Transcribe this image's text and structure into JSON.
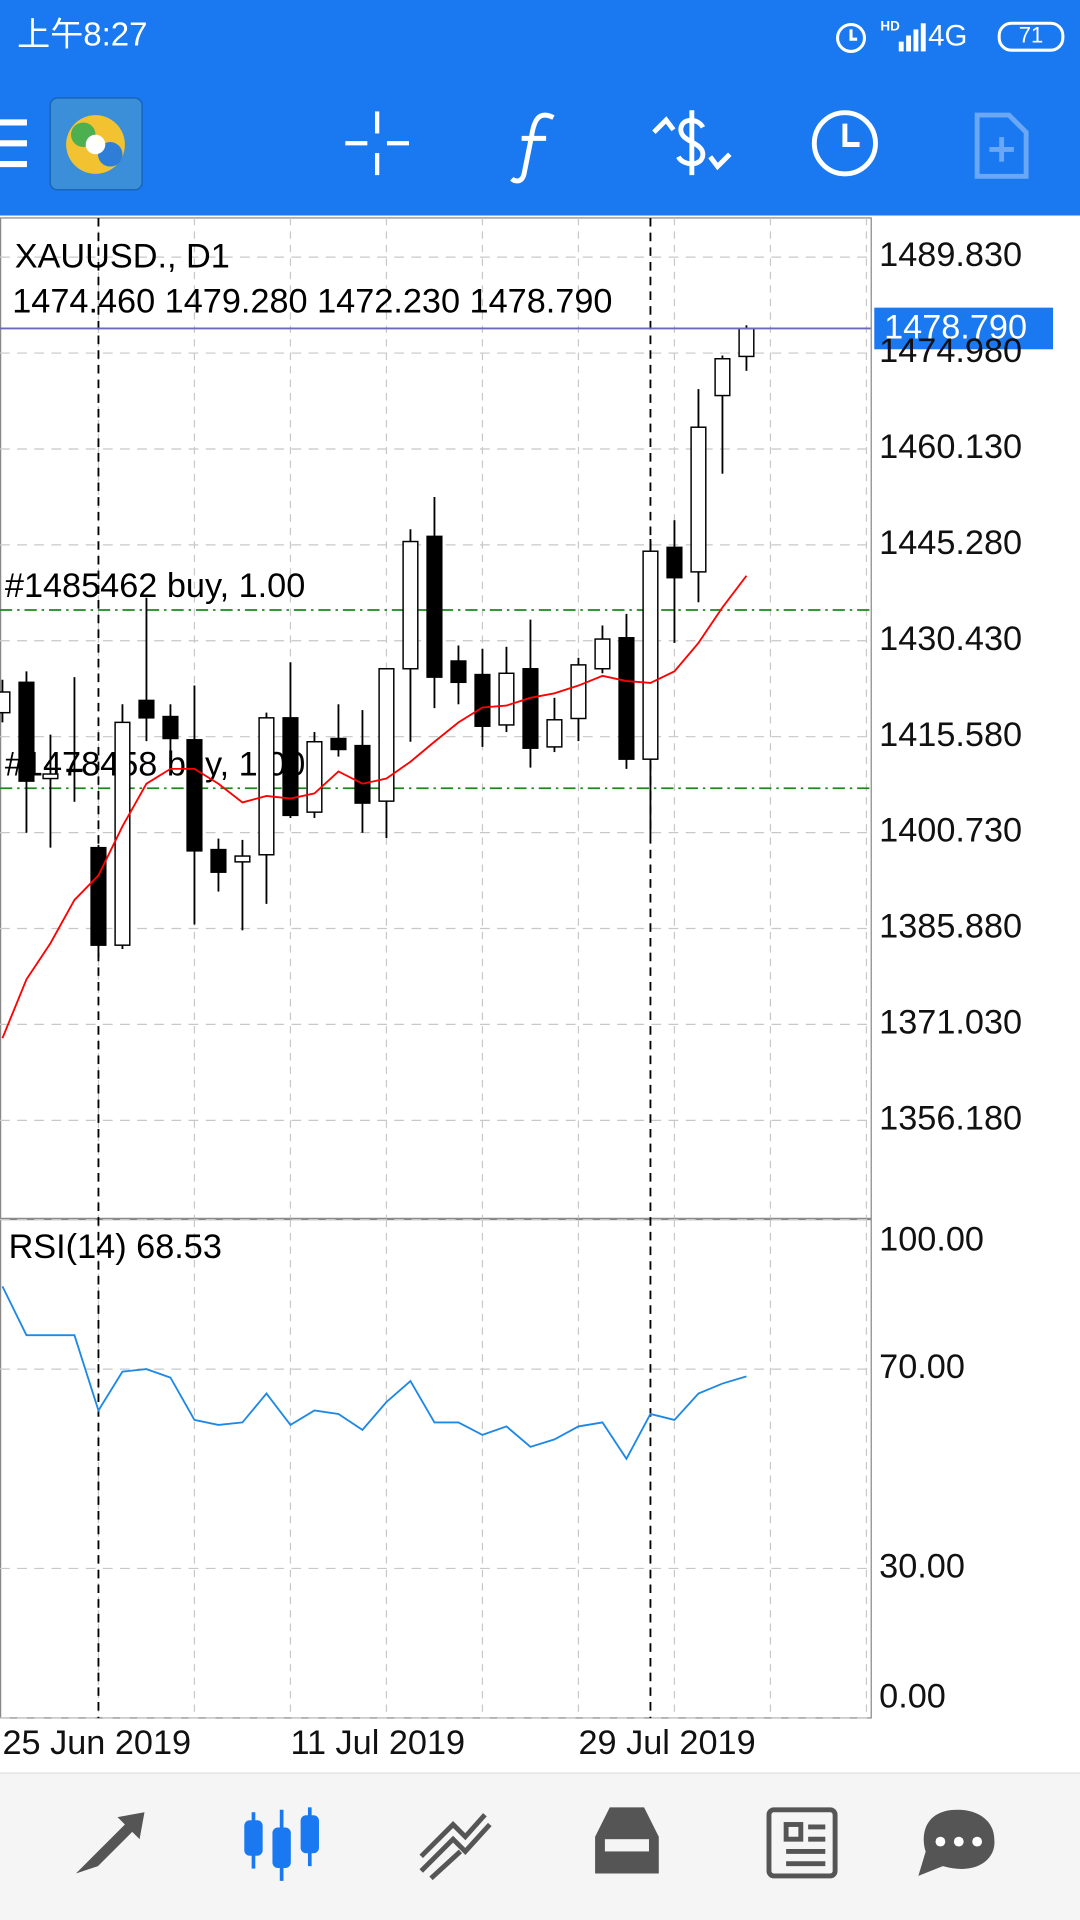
{
  "status_bar": {
    "time": "上午8:27",
    "hd": "HD",
    "network": "4G",
    "battery": "71"
  },
  "chart_data": [
    {
      "type": "candlestick",
      "title": "XAUUSD., D1",
      "subtitle": "1474.460 1479.280 1472.230 1478.790",
      "categories": [
        "25 Jun 2019",
        null,
        null,
        null,
        null,
        null,
        null,
        null,
        null,
        null,
        null,
        null,
        "11 Jul 2019",
        null,
        null,
        null,
        null,
        null,
        null,
        null,
        null,
        null,
        null,
        null,
        "29 Jul 2019",
        null,
        null,
        null,
        null,
        null,
        null,
        null
      ],
      "open": [
        1419.3,
        1424.0,
        1409.1,
        1410.5,
        1398.4,
        1383.3,
        1421.2,
        1418.7,
        1415.1,
        1398.1,
        1396.2,
        1397.3,
        1418.5,
        1403.9,
        1415.3,
        1414.2,
        1405.6,
        1426.1,
        1446.6,
        1427.3,
        1425.2,
        1417.4,
        1426.1,
        1414.0,
        1418.4,
        1426.1,
        1430.9,
        1412.1,
        1444.9,
        1441.1,
        1468.4,
        1474.46
      ],
      "high": [
        1424.4,
        1425.7,
        1415.9,
        1424.8,
        1398.8,
        1420.6,
        1437.1,
        1420.6,
        1423.5,
        1399.8,
        1399.6,
        1419.3,
        1427.1,
        1416.3,
        1420.6,
        1419.7,
        1426.1,
        1447.7,
        1452.7,
        1429.7,
        1429.2,
        1429.5,
        1433.7,
        1421.6,
        1427.8,
        1432.8,
        1434.6,
        1446.2,
        1449.1,
        1469.4,
        1474.6,
        1479.28
      ],
      "low": [
        1417.8,
        1400.7,
        1398.4,
        1405.5,
        1381.4,
        1382.7,
        1414.9,
        1410.2,
        1386.5,
        1391.6,
        1385.6,
        1389.7,
        1403.0,
        1403.0,
        1412.5,
        1400.7,
        1399.9,
        1414.8,
        1420.0,
        1420.6,
        1414.0,
        1416.3,
        1410.8,
        1413.2,
        1414.9,
        1425.4,
        1410.6,
        1400.3,
        1430.1,
        1436.4,
        1456.3,
        1472.23
      ],
      "close": [
        1422.5,
        1408.7,
        1409.8,
        1410.3,
        1383.3,
        1417.8,
        1418.5,
        1415.3,
        1397.9,
        1394.6,
        1397.1,
        1418.5,
        1403.4,
        1414.8,
        1413.6,
        1405.3,
        1426.1,
        1445.8,
        1424.8,
        1424.0,
        1417.2,
        1425.4,
        1413.8,
        1418.2,
        1426.7,
        1430.7,
        1412.1,
        1444.3,
        1440.2,
        1463.5,
        1474.1,
        1478.79
      ],
      "up_color": "#ffffff",
      "down_color": "#000000",
      "overlays": [
        {
          "type": "line",
          "color": "#ff0000",
          "values": [
            1368.9,
            1378.0,
            1383.6,
            1390.3,
            1394.1,
            1401.7,
            1408.3,
            1410.6,
            1410.6,
            1408.3,
            1405.4,
            1406.4,
            1406.0,
            1406.8,
            1410.2,
            1408.3,
            1409.1,
            1411.7,
            1414.8,
            1417.8,
            1420.1,
            1420.4,
            1421.6,
            1422.3,
            1423.5,
            1425.0,
            1424.2,
            1423.9,
            1425.7,
            1430.1,
            1435.6,
            1440.5
          ]
        }
      ],
      "bid": {
        "value": 1478.79,
        "label": "1478.790",
        "color": "#1a78f0"
      },
      "orders": [
        {
          "value": 1435.2,
          "label": "#1485462 buy, 1.00",
          "color": "#1a8a1a"
        },
        {
          "value": 1407.6,
          "label": "#1478458 buy, 1.00",
          "color": "#1a8a1a"
        }
      ],
      "period_separators": [
        4,
        27
      ],
      "ylim": [
        1341.0,
        1495.9
      ],
      "yticks": [
        {
          "value": 1356.18,
          "label": "1356.180"
        },
        {
          "value": 1371.03,
          "label": "1371.030"
        },
        {
          "value": 1385.88,
          "label": "1385.880"
        },
        {
          "value": 1400.73,
          "label": "1400.730"
        },
        {
          "value": 1415.58,
          "label": "1415.580"
        },
        {
          "value": 1430.43,
          "label": "1430.430"
        },
        {
          "value": 1445.28,
          "label": "1445.280"
        },
        {
          "value": 1460.13,
          "label": "1460.130"
        },
        {
          "value": 1474.98,
          "label": "1474.980"
        },
        {
          "value": 1489.83,
          "label": "1489.830"
        }
      ],
      "grid": true
    },
    {
      "type": "line",
      "title": "RSI(14) 68.53",
      "color": "#1e88e5",
      "values": [
        86.6,
        76.8,
        76.8,
        76.8,
        61.7,
        69.5,
        70.0,
        68.3,
        59.8,
        58.8,
        59.3,
        65.1,
        58.8,
        61.7,
        61.0,
        57.8,
        63.4,
        67.6,
        59.3,
        59.3,
        56.8,
        58.5,
        54.4,
        55.9,
        58.5,
        59.3,
        52.0,
        61.0,
        59.8,
        65.1,
        67.1,
        68.53
      ],
      "ylim": [
        0,
        100
      ],
      "yticks": [
        {
          "value": 0,
          "label": "0.00"
        },
        {
          "value": 30,
          "label": "30.00"
        },
        {
          "value": 70,
          "label": "70.00"
        },
        {
          "value": 100,
          "label": "100.00"
        }
      ],
      "grid": true
    }
  ]
}
